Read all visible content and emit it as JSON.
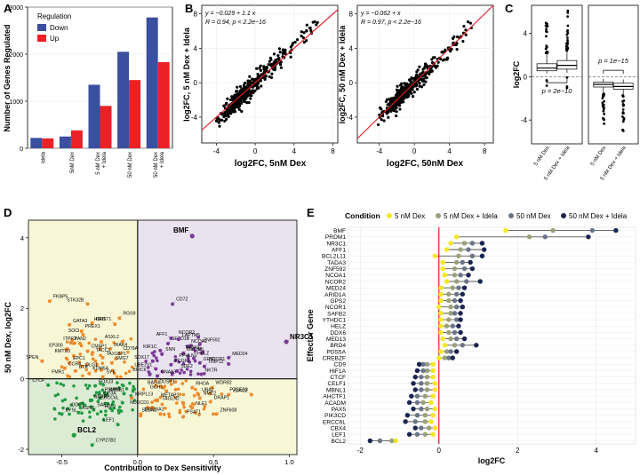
{
  "panel_labels": {
    "a": "A",
    "b": "B",
    "c": "C",
    "d": "D",
    "e": "E"
  },
  "colors": {
    "down": "#3a4fa0",
    "up": "#ea2127",
    "d_quadrant_tr": "#e9e2ef",
    "d_quadrant_tl": "#f7f7d6",
    "d_quadrant_br": "#f7f7d6",
    "d_quadrant_bl": "#dcebd4",
    "d_orange": "#ee8a2c",
    "d_purple": "#7a3a96",
    "d_green": "#239b45",
    "e_c1": "#f5e81c",
    "e_c2": "#9aa07a",
    "e_c3": "#6b7588",
    "e_c4": "#1b2450"
  },
  "chart_data": [
    {
      "id": "A",
      "type": "bar",
      "ylabel": "Number of Genes Regulated",
      "ylim": [
        0,
        3000
      ],
      "yticks": [
        "0",
        "1000",
        "2000",
        "3000"
      ],
      "categories": [
        "Idela",
        "5nM Dex",
        "5 nM Dex + Idela",
        "50 nM Dex",
        "50 nM Dex + Idela"
      ],
      "legend_title": "Regulation",
      "series": [
        {
          "name": "Down",
          "values": [
            220,
            250,
            1350,
            2050,
            2780
          ]
        },
        {
          "name": "Up",
          "values": [
            210,
            380,
            900,
            1450,
            1830
          ]
        }
      ]
    },
    {
      "id": "B1",
      "type": "scatter",
      "xlabel": "log2FC, 5nM Dex",
      "ylabel": "log2FC, 5 nM Dex + Idela",
      "xlim": [
        -5.5,
        8.5
      ],
      "ylim": [
        -7,
        9
      ],
      "xticks": [
        "-4",
        "0",
        "4",
        "8"
      ],
      "yticks": [
        "-4",
        "0",
        "4",
        "8"
      ],
      "eq_line1": "y = −0.029 + 1.1 x",
      "eq_line2": "R = 0.94, p < 2.2e−16",
      "fit": {
        "intercept": -0.029,
        "slope": 1.1
      }
    },
    {
      "id": "B2",
      "type": "scatter",
      "xlabel": "log2FC, 50nM Dex",
      "ylabel": "log2FC, 50 nM Dex + Idela",
      "xlim": [
        -6.5,
        9
      ],
      "ylim": [
        -7,
        9
      ],
      "xticks": [
        "-4",
        "0",
        "4",
        "8"
      ],
      "yticks": [
        "-4",
        "0",
        "4",
        "8"
      ],
      "eq_line1": "y = −0.062 + x",
      "eq_line2": "R = 0.97, p < 2.2e−16",
      "fit": {
        "intercept": -0.062,
        "slope": 1.0
      }
    },
    {
      "id": "C",
      "type": "box",
      "ylabel": "log2FC",
      "ylim": [
        -6.2,
        6.6
      ],
      "yticks": [
        "-4",
        "0",
        "4"
      ],
      "panels": [
        {
          "categories": [
            "5 nM Dex",
            "5 nM Dex + Idela"
          ],
          "p_label": "p = 2e−10",
          "boxes": [
            [
              0.3,
              0.55,
              0.8,
              1.2,
              2.2
            ],
            [
              0.35,
              0.7,
              1.05,
              1.5,
              2.4
            ]
          ]
        },
        {
          "categories": [
            "5 nM Dex",
            "5 nM Dex + Idela"
          ],
          "p_label": "p = 1e−15",
          "boxes": [
            [
              -1.6,
              -0.95,
              -0.7,
              -0.5,
              -0.2
            ],
            [
              -1.7,
              -1.15,
              -0.9,
              -0.6,
              -0.25
            ]
          ]
        }
      ]
    },
    {
      "id": "D",
      "type": "scatter",
      "xlabel": "Contribution to Dex Sensitivity",
      "ylabel": "50 nM Dex, log2FC",
      "xlim": [
        -0.72,
        1.05
      ],
      "ylim": [
        -2.15,
        4.5
      ],
      "xticks": [
        "-0.5",
        "0.0",
        "0.5",
        "1.0"
      ],
      "yticks": [
        "-2",
        "0",
        "2",
        "4"
      ],
      "points": [
        {
          "label": "BMF",
          "x": 0.36,
          "y": 4.05,
          "color": "purple",
          "bold": true
        },
        {
          "label": "NR3C1",
          "x": 0.98,
          "y": 1.05,
          "color": "purple",
          "bold": true
        },
        {
          "label": "CD72",
          "x": 0.23,
          "y": 2.12,
          "color": "purple"
        },
        {
          "label": "AFF1",
          "x": 0.22,
          "y": 1.15,
          "color": "purple"
        },
        {
          "label": "SETD1B",
          "x": 0.2,
          "y": 1.0,
          "color": "purple"
        },
        {
          "label": "LAPTM5",
          "x": 0.27,
          "y": 1.12,
          "color": "purple"
        },
        {
          "label": "NCOR2",
          "x": 0.4,
          "y": 1.18,
          "color": "purple"
        },
        {
          "label": "ZNF592",
          "x": 0.41,
          "y": 0.98,
          "color": "purple"
        },
        {
          "label": "NCOA1",
          "x": 0.33,
          "y": 0.92,
          "color": "purple"
        },
        {
          "label": "KIR1C",
          "x": 0.15,
          "y": 0.8,
          "color": "purple"
        },
        {
          "label": "SNN",
          "x": 0.16,
          "y": 0.7,
          "color": "purple"
        },
        {
          "label": "MED13L",
          "x": 0.3,
          "y": 0.72,
          "color": "purple"
        },
        {
          "label": "TADA3",
          "x": 0.43,
          "y": 0.75,
          "color": "purple"
        },
        {
          "label": "MED24",
          "x": 0.6,
          "y": 0.6,
          "color": "purple"
        },
        {
          "label": "HELZ",
          "x": 0.37,
          "y": 0.58,
          "color": "purple"
        },
        {
          "label": "SOX17",
          "x": 0.1,
          "y": 0.5,
          "color": "purple"
        },
        {
          "label": "PPHLN1",
          "x": 0.25,
          "y": 0.52,
          "color": "purple"
        },
        {
          "label": "GPS2",
          "x": 0.41,
          "y": 0.45,
          "color": "purple"
        },
        {
          "label": "NCOR1",
          "x": 0.6,
          "y": 0.42,
          "color": "purple"
        },
        {
          "label": "PCGF3",
          "x": 0.22,
          "y": 0.4,
          "color": "purple"
        },
        {
          "label": "TRIP12",
          "x": 0.44,
          "y": 0.35,
          "color": "purple"
        },
        {
          "label": "UBE2V1",
          "x": 0.12,
          "y": 0.28,
          "color": "purple"
        },
        {
          "label": "SDE2",
          "x": 0.26,
          "y": 0.22,
          "color": "purple"
        },
        {
          "label": "NKTR",
          "x": 0.42,
          "y": 0.13,
          "color": "purple"
        },
        {
          "label": "BIRC6",
          "x": 0.08,
          "y": 0.12,
          "color": "purple"
        },
        {
          "label": "GNA13",
          "x": 0.13,
          "y": 0.08,
          "color": "purple"
        },
        {
          "label": "FKBP5",
          "x": -0.58,
          "y": 2.2,
          "color": "orange"
        },
        {
          "label": "STK32B",
          "x": -0.33,
          "y": 2.12,
          "color": "orange"
        },
        {
          "label": "RGS9",
          "x": -0.12,
          "y": 1.72,
          "color": "orange"
        },
        {
          "label": "GFI1",
          "x": -0.3,
          "y": 1.58,
          "color": "orange"
        },
        {
          "label": "HS6ST1",
          "x": -0.15,
          "y": 1.55,
          "color": "orange"
        },
        {
          "label": "GATA3",
          "x": -0.45,
          "y": 1.53,
          "color": "orange"
        },
        {
          "label": "PREX1",
          "x": -0.37,
          "y": 1.35,
          "color": "orange"
        },
        {
          "label": "SOCI",
          "x": -0.36,
          "y": 1.25,
          "color": "orange"
        },
        {
          "label": "ASXL2",
          "x": -0.24,
          "y": 1.05,
          "color": "orange"
        },
        {
          "label": "PAN2",
          "x": -0.44,
          "y": 1.02,
          "color": "orange"
        },
        {
          "label": "ITPR2",
          "x": -0.38,
          "y": 1.0,
          "color": "orange"
        },
        {
          "label": "IRAK4",
          "x": -0.18,
          "y": 0.85,
          "color": "orange"
        },
        {
          "label": "CD79A",
          "x": -0.12,
          "y": 0.72,
          "color": "orange"
        },
        {
          "label": "EP300",
          "x": -0.47,
          "y": 0.83,
          "color": "orange"
        },
        {
          "label": "CMAP1",
          "x": -0.33,
          "y": 0.78,
          "color": "orange"
        },
        {
          "label": "TACC1",
          "x": -0.3,
          "y": 0.7,
          "color": "orange"
        },
        {
          "label": "KMT2D",
          "x": -0.42,
          "y": 0.65,
          "color": "orange"
        },
        {
          "label": "TAX1BP1",
          "x": -0.23,
          "y": 0.6,
          "color": "orange"
        },
        {
          "label": "SMG7",
          "x": -0.17,
          "y": 0.45,
          "color": "orange"
        },
        {
          "label": "SPEN",
          "x": -0.63,
          "y": 0.5,
          "color": "orange"
        },
        {
          "label": "EPC1",
          "x": -0.45,
          "y": 0.45,
          "color": "orange"
        },
        {
          "label": "CCR4",
          "x": -0.48,
          "y": 0.3,
          "color": "orange"
        },
        {
          "label": "DLG1",
          "x": -0.24,
          "y": 0.25,
          "color": "orange"
        },
        {
          "label": "BTK",
          "x": -0.41,
          "y": 0.22,
          "color": "orange"
        },
        {
          "label": "KDM5A",
          "x": -0.32,
          "y": 0.15,
          "color": "orange"
        },
        {
          "label": "FMR1",
          "x": -0.46,
          "y": 0.08,
          "color": "orange"
        },
        {
          "label": "SYK",
          "x": -0.23,
          "y": 0.05,
          "color": "orange"
        },
        {
          "label": "DUSP1",
          "x": 0.12,
          "y": -0.2,
          "color": "orange"
        },
        {
          "label": "BAG4",
          "x": 0.17,
          "y": -0.25,
          "color": "orange"
        },
        {
          "label": "RHOA",
          "x": 0.36,
          "y": -0.25,
          "color": "orange"
        },
        {
          "label": "WDR82",
          "x": 0.49,
          "y": -0.25,
          "color": "orange"
        },
        {
          "label": "GCH1",
          "x": 0.19,
          "y": -0.35,
          "color": "orange"
        },
        {
          "label": "UBA2",
          "x": 0.4,
          "y": -0.45,
          "color": "orange"
        },
        {
          "label": "VDAC2",
          "x": 0.6,
          "y": -0.45,
          "color": "orange"
        },
        {
          "label": "PTGES3",
          "x": 0.75,
          "y": -0.45,
          "color": "orange"
        },
        {
          "label": "MRPL13",
          "x": -0.04,
          "y": -0.55,
          "color": "orange"
        },
        {
          "label": "METAP1",
          "x": 0.13,
          "y": -0.6,
          "color": "orange"
        },
        {
          "label": "TAGLN2",
          "x": 0.3,
          "y": -0.68,
          "color": "orange"
        },
        {
          "label": "NME2",
          "x": 0.41,
          "y": -0.55,
          "color": "orange"
        },
        {
          "label": "DRAP1",
          "x": 0.48,
          "y": -0.65,
          "color": "orange"
        },
        {
          "label": "NUDCD1",
          "x": 0.1,
          "y": -0.82,
          "color": "orange"
        },
        {
          "label": "NLE1",
          "x": 0.36,
          "y": -0.82,
          "color": "orange"
        },
        {
          "label": "SLC16A1",
          "x": 0.02,
          "y": -1.0,
          "color": "orange"
        },
        {
          "label": "SESN2",
          "x": 0.15,
          "y": -1.0,
          "color": "orange"
        },
        {
          "label": "PSAT1",
          "x": 0.3,
          "y": -1.08,
          "color": "orange"
        },
        {
          "label": "ZNF608",
          "x": 0.52,
          "y": -1.0,
          "color": "orange"
        },
        {
          "label": "CTCF",
          "x": -0.59,
          "y": -0.18,
          "color": "green"
        },
        {
          "label": "FOXJ3",
          "x": -0.28,
          "y": -0.2,
          "color": "green"
        },
        {
          "label": "KPNB1",
          "x": -0.21,
          "y": -0.45,
          "color": "green"
        },
        {
          "label": "PSMB5",
          "x": -0.09,
          "y": -0.42,
          "color": "green"
        },
        {
          "label": "EIF3A",
          "x": -0.25,
          "y": -0.55,
          "color": "green"
        },
        {
          "label": "SNRPF",
          "x": -0.31,
          "y": -0.62,
          "color": "green"
        },
        {
          "label": "ERCC6L",
          "x": -0.1,
          "y": -0.68,
          "color": "green"
        },
        {
          "label": "ODC1",
          "x": -0.46,
          "y": -0.85,
          "color": "green"
        },
        {
          "label": "SAE1",
          "x": -0.29,
          "y": -0.88,
          "color": "green"
        },
        {
          "label": "H2F2",
          "x": -0.12,
          "y": -0.9,
          "color": "green"
        },
        {
          "label": "ASNS",
          "x": -0.39,
          "y": -0.96,
          "color": "green"
        },
        {
          "label": "BYSL",
          "x": -0.5,
          "y": -1.0,
          "color": "green"
        },
        {
          "label": "LEF1",
          "x": -0.13,
          "y": -1.3,
          "color": "green"
        },
        {
          "label": "BCL2",
          "x": -0.42,
          "y": -1.6,
          "color": "green",
          "bold": true
        },
        {
          "label": "CYP27B1",
          "x": -0.3,
          "y": -1.88,
          "color": "green",
          "italic": true
        }
      ]
    },
    {
      "id": "E",
      "type": "dot",
      "legend_title": "Condition",
      "condition_names": [
        "5 nM Dex",
        "5 nM Dex + Idela",
        "50 nM Dex",
        "50 nM Dex + Idela"
      ],
      "xlabel": "log2FC",
      "ylabel": "Effector Gene",
      "xlim": [
        -2.3,
        5.0
      ],
      "xticks": [
        "-2",
        "0",
        "2",
        "4"
      ],
      "genes": [
        {
          "name": "BMF",
          "values": [
            1.7,
            2.9,
            3.9,
            4.5
          ]
        },
        {
          "name": "PRDM1",
          "values": [
            0.45,
            2.3,
            2.7,
            3.8
          ]
        },
        {
          "name": "NR3C1",
          "values": [
            0.3,
            0.65,
            0.85,
            1.1
          ]
        },
        {
          "name": "AFF1",
          "values": [
            0.2,
            0.55,
            0.75,
            1.15
          ]
        },
        {
          "name": "BCL2L11",
          "values": [
            -0.1,
            0.5,
            0.85,
            1.1
          ]
        },
        {
          "name": "TADA3",
          "values": [
            0.1,
            0.45,
            0.6,
            0.8
          ]
        },
        {
          "name": "ZNF592",
          "values": [
            0.1,
            0.4,
            0.65,
            0.85
          ]
        },
        {
          "name": "NCOA1",
          "values": [
            0.15,
            0.4,
            0.55,
            0.75
          ]
        },
        {
          "name": "NCOR2",
          "values": [
            0.2,
            0.45,
            0.7,
            1.05
          ]
        },
        {
          "name": "MED24",
          "values": [
            0.05,
            0.35,
            0.5,
            0.65
          ]
        },
        {
          "name": "ARID1A",
          "values": [
            0.05,
            0.25,
            0.45,
            0.6
          ]
        },
        {
          "name": "GPS2",
          "values": [
            0.05,
            0.25,
            0.4,
            0.55
          ]
        },
        {
          "name": "NCOR1",
          "values": [
            0.0,
            0.3,
            0.45,
            0.6
          ]
        },
        {
          "name": "SAFB2",
          "values": [
            0.05,
            0.3,
            0.4,
            0.55
          ]
        },
        {
          "name": "YTHDC1",
          "values": [
            0.05,
            0.25,
            0.45,
            0.55
          ]
        },
        {
          "name": "HELZ",
          "values": [
            0.05,
            0.2,
            0.35,
            0.5
          ]
        },
        {
          "name": "DDX6",
          "values": [
            0.05,
            0.25,
            0.4,
            0.55
          ]
        },
        {
          "name": "MED13",
          "values": [
            0.1,
            0.3,
            0.45,
            0.65
          ]
        },
        {
          "name": "BRD4",
          "values": [
            0.15,
            0.4,
            0.6,
            0.95
          ]
        },
        {
          "name": "PDS5A",
          "values": [
            0.05,
            0.2,
            0.3,
            0.45
          ]
        },
        {
          "name": "CREBZF",
          "values": [
            0.0,
            0.15,
            0.25,
            0.35
          ]
        },
        {
          "name": "CD9",
          "values": [
            -0.15,
            -0.3,
            -0.4,
            -0.5
          ]
        },
        {
          "name": "HIF1A",
          "values": [
            -0.15,
            -0.3,
            -0.4,
            -0.55
          ]
        },
        {
          "name": "CTCF",
          "values": [
            -0.15,
            -0.3,
            -0.45,
            -0.6
          ]
        },
        {
          "name": "CELF1",
          "values": [
            -0.1,
            -0.3,
            -0.45,
            -0.65
          ]
        },
        {
          "name": "MBNL1",
          "values": [
            -0.1,
            -0.3,
            -0.45,
            -0.6
          ]
        },
        {
          "name": "AHCTF1",
          "values": [
            -0.15,
            -0.35,
            -0.55,
            -0.7
          ]
        },
        {
          "name": "ACADM",
          "values": [
            -0.2,
            -0.4,
            -0.55,
            -0.75
          ]
        },
        {
          "name": "PAX5",
          "values": [
            -0.1,
            -0.3,
            -0.45,
            -0.65
          ]
        },
        {
          "name": "PIK3CD",
          "values": [
            -0.15,
            -0.35,
            -0.55,
            -0.8
          ]
        },
        {
          "name": "ERCC6L",
          "values": [
            -0.2,
            -0.35,
            -0.6,
            -0.85
          ]
        },
        {
          "name": "CBX4",
          "values": [
            -0.1,
            -0.25,
            -0.45,
            -0.6
          ]
        },
        {
          "name": "LEF1",
          "values": [
            -0.15,
            -0.35,
            -0.55,
            -0.75
          ]
        },
        {
          "name": "BCL2",
          "values": [
            -1.1,
            -1.2,
            -1.5,
            -1.75
          ]
        }
      ]
    }
  ]
}
